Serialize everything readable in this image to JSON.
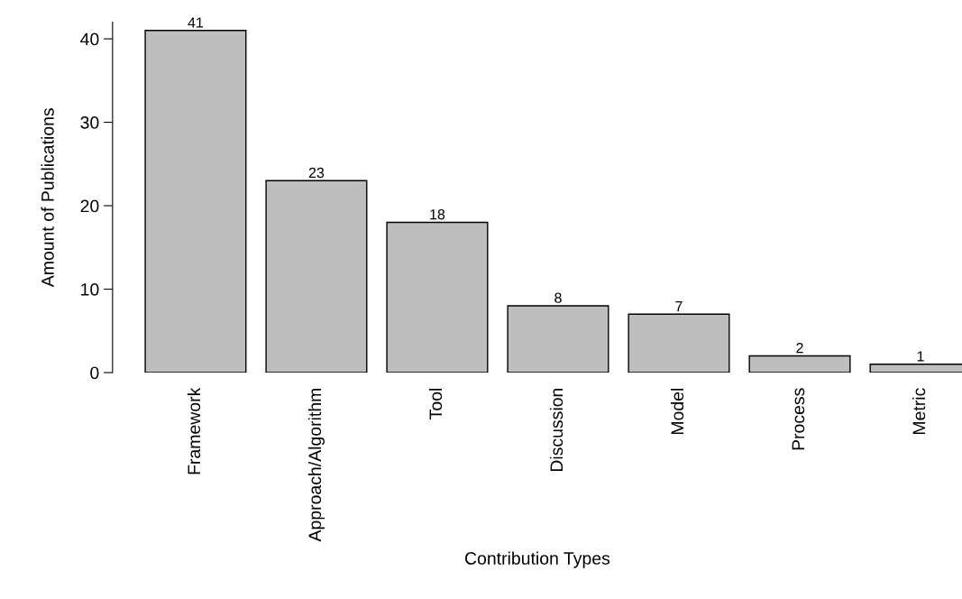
{
  "chart_data": {
    "type": "bar",
    "categories": [
      "Framework",
      "Approach/Algorithm",
      "Tool",
      "Discussion",
      "Model",
      "Process",
      "Metric"
    ],
    "values": [
      41,
      23,
      18,
      8,
      7,
      2,
      1
    ],
    "color": "#bebebe",
    "xlabel": "Contribution Types",
    "ylabel": "Amount of Publications",
    "ylim": [
      0,
      42
    ],
    "yticks": [
      0,
      10,
      20,
      30,
      40
    ],
    "data_labels": true
  }
}
